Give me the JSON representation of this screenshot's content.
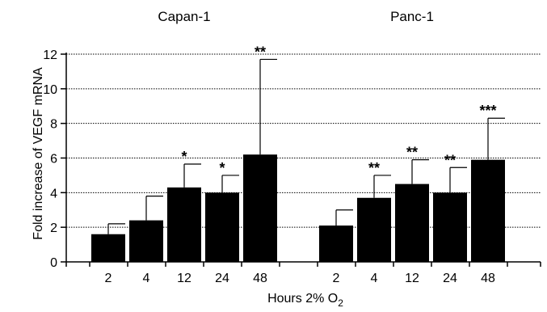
{
  "chart_data": {
    "type": "bar",
    "ylabel": "Fold increase of VEGF mRNA",
    "xlabel_main": "Hours 2% O",
    "xlabel_sub": "2",
    "ylim": [
      0,
      12
    ],
    "yticks": [
      "0",
      "2",
      "4",
      "6",
      "8",
      "10",
      "12"
    ],
    "grid": true,
    "groups": [
      {
        "name": "Capan-1",
        "categories": [
          "2",
          "4",
          "12",
          "24",
          "48"
        ],
        "values": [
          1.6,
          2.4,
          4.3,
          4.0,
          6.2
        ],
        "errors": [
          0.6,
          1.4,
          1.35,
          1.0,
          5.5
        ],
        "significance": [
          "",
          "",
          "*",
          "*",
          "**"
        ]
      },
      {
        "name": "Panc-1",
        "categories": [
          "2",
          "4",
          "12",
          "24",
          "48"
        ],
        "values": [
          2.1,
          3.7,
          4.5,
          4.0,
          5.9
        ],
        "errors": [
          0.9,
          1.3,
          1.4,
          1.45,
          2.4
        ],
        "significance": [
          "",
          "**",
          "**",
          "**",
          "***"
        ]
      }
    ]
  }
}
